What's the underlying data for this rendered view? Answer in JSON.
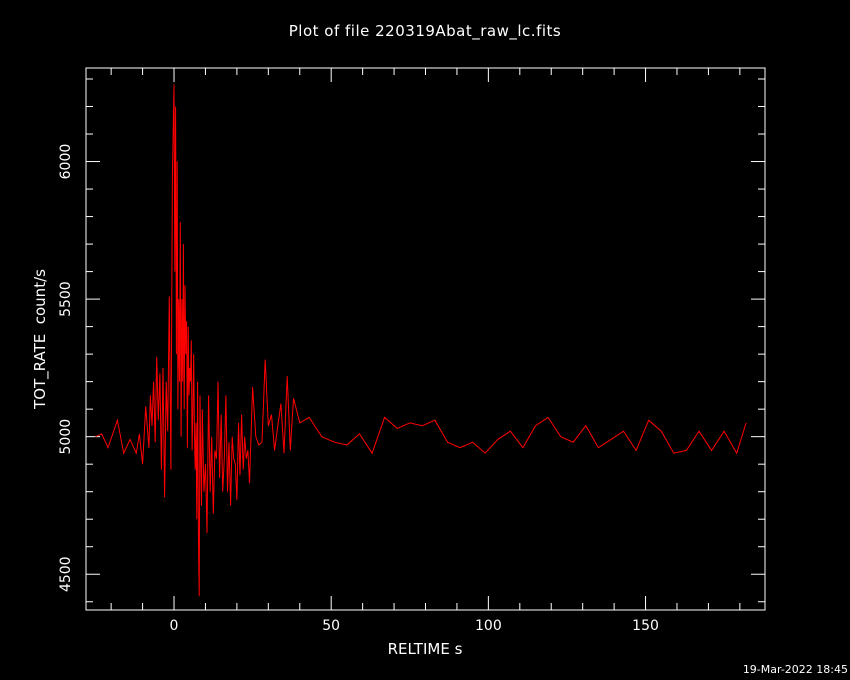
{
  "chart_data": {
    "type": "line",
    "title": "Plot of file 220319Abat_raw_lc.fits",
    "xlabel": "RELTIME  s",
    "ylabel": "TOT_RATE  count/s",
    "timestamp": "19-Mar-2022 18:45",
    "xlim": [
      -28,
      188
    ],
    "ylim": [
      4370,
      6340
    ],
    "xticks": [
      0,
      50,
      100,
      150
    ],
    "yticks": [
      4500,
      5000,
      5500,
      6000
    ],
    "line_color": "#ff0000",
    "series": [
      {
        "x": [
          -25,
          -23,
          -21,
          -18,
          -16,
          -14,
          -12,
          -11,
          -10,
          -9,
          -8,
          -7.5,
          -7,
          -6.5,
          -6,
          -5.5,
          -5,
          -4.5,
          -4,
          -3.5,
          -3,
          -2.5,
          -2,
          -1.5,
          -1,
          -0.5,
          0,
          0.25,
          0.5,
          0.75,
          1,
          1.25,
          1.5,
          1.75,
          2,
          2.25,
          2.5,
          2.75,
          3,
          3.25,
          3.5,
          3.75,
          4,
          4.25,
          4.5,
          4.75,
          5,
          5.25,
          5.5,
          5.75,
          6,
          6.25,
          6.5,
          6.75,
          7,
          7.25,
          7.5,
          7.75,
          8,
          8.25,
          8.5,
          8.75,
          9,
          9.5,
          10,
          10.5,
          11,
          11.5,
          12,
          12.5,
          13,
          13.5,
          14,
          14.5,
          15,
          15.5,
          16,
          16.5,
          17,
          17.5,
          18,
          18.5,
          19,
          19.5,
          20,
          20.5,
          21,
          21.5,
          22,
          22.5,
          23,
          23.5,
          24,
          25,
          26,
          27,
          28,
          29,
          30,
          31,
          32,
          33,
          34,
          35,
          36,
          37,
          38,
          40,
          43,
          47,
          51,
          55,
          59,
          63,
          67,
          71,
          75,
          79,
          83,
          87,
          91,
          95,
          99,
          103,
          107,
          111,
          115,
          119,
          123,
          127,
          131,
          135,
          139,
          143,
          147,
          151,
          155,
          159,
          163,
          167,
          171,
          175,
          179,
          182
        ],
        "y": [
          5000,
          5010,
          4960,
          5060,
          4940,
          4990,
          4940,
          5010,
          4900,
          5110,
          4960,
          5150,
          5040,
          5200,
          4980,
          5290,
          5060,
          5230,
          4880,
          5250,
          4780,
          5200,
          5020,
          5510,
          4880,
          5950,
          6280,
          5600,
          6200,
          5300,
          6000,
          5100,
          5500,
          5200,
          5780,
          5000,
          5500,
          5200,
          5700,
          5100,
          5550,
          5300,
          5420,
          4960,
          5400,
          5150,
          5250,
          5200,
          5350,
          4950,
          5100,
          5300,
          5000,
          4880,
          5050,
          4700,
          5200,
          4650,
          4420,
          5150,
          4950,
          4750,
          5100,
          4800,
          4900,
          4650,
          5150,
          4800,
          5000,
          4720,
          4950,
          4920,
          5200,
          4850,
          5080,
          4800,
          4920,
          5150,
          4800,
          4980,
          4750,
          5000,
          4920,
          4900,
          4770,
          5050,
          4860,
          5080,
          4880,
          5000,
          4920,
          4950,
          4830,
          5180,
          5000,
          4970,
          4980,
          5280,
          5040,
          5080,
          4950,
          5040,
          5120,
          4940,
          5220,
          4950,
          5140,
          5050,
          5070,
          5000,
          4980,
          4970,
          5010,
          4940,
          5070,
          5030,
          5050,
          5040,
          5060,
          4980,
          4960,
          4980,
          4940,
          4990,
          5020,
          4960,
          5040,
          5070,
          5000,
          4980,
          5040,
          4960,
          4990,
          5020,
          4950,
          5060,
          5020,
          4940,
          4950,
          5020,
          4950,
          5020,
          4940,
          5050
        ]
      }
    ]
  }
}
